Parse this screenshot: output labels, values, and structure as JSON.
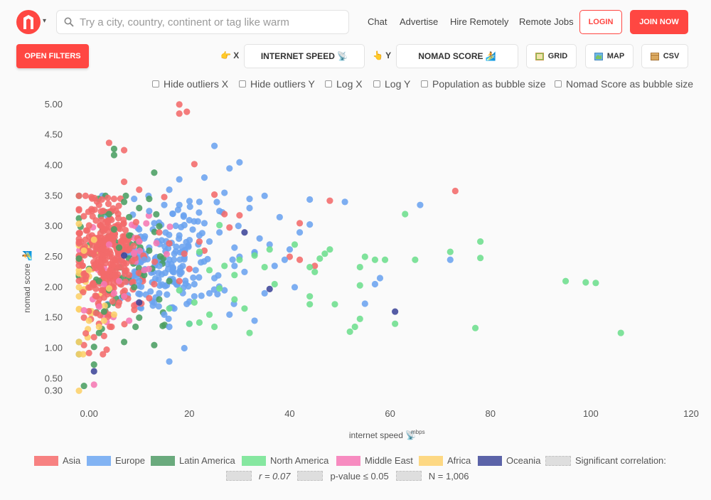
{
  "header": {
    "logo_icon": "nomad-logo-icon",
    "search_placeholder": "Try a city, country, continent or tag like warm",
    "nav": [
      "Chat",
      "Advertise",
      "Hire Remotely",
      "Remote Jobs"
    ],
    "login": "LOGIN",
    "join": "JOIN NOW",
    "brand_color": "#ff4742"
  },
  "toolbar": {
    "filters": "OPEN FILTERS",
    "x_hint_icon": "👉",
    "x_label": "X",
    "x_value": "INTERNET SPEED 📡",
    "y_hint_icon": "👆",
    "y_label": "Y",
    "y_value": "NOMAD SCORE 🏄",
    "grid": "GRID",
    "map": "MAP",
    "csv": "CSV"
  },
  "options": [
    "Hide outliers X",
    "Hide outliers Y",
    "Log X",
    "Log Y",
    "Population as bubble size",
    "Nomad Score as bubble size"
  ],
  "chart_data": {
    "type": "scatter",
    "xlabel": "internet speed 📡",
    "xunit": "mbps",
    "ylabel": "nomad score 🏄",
    "xlim": [
      -3,
      120
    ],
    "ylim": [
      0.2,
      5.15
    ],
    "xticks": [
      0,
      20,
      40,
      60,
      80,
      100,
      120
    ],
    "xtick_labels": [
      "0.00",
      "20",
      "40",
      "60",
      "80",
      "100",
      "120"
    ],
    "yticks": [
      0.3,
      0.5,
      1.0,
      1.5,
      2.0,
      2.5,
      3.0,
      3.5,
      4.0,
      4.5,
      5.0
    ],
    "ytick_labels": [
      "0.30",
      "0.50",
      "1.00",
      "1.50",
      "2.00",
      "2.50",
      "3.00",
      "3.50",
      "4.00",
      "4.50",
      "5.00"
    ],
    "series": [
      {
        "name": "Asia",
        "color": "#f26a6a",
        "points": [
          [
            18,
            5.0
          ],
          [
            19.5,
            4.88
          ],
          [
            18,
            4.85
          ],
          [
            4,
            4.37
          ],
          [
            7,
            4.25
          ],
          [
            21,
            4.02
          ],
          [
            7,
            3.73
          ],
          [
            0.5,
            3.48
          ],
          [
            5,
            3.45
          ],
          [
            2,
            3.35
          ],
          [
            -2,
            3.28
          ],
          [
            48,
            3.42
          ],
          [
            73,
            3.58
          ],
          [
            25,
            3.52
          ],
          [
            10,
            3.6
          ],
          [
            15,
            3.48
          ],
          [
            27,
            3.2
          ],
          [
            30,
            3.18
          ],
          [
            28,
            2.98
          ],
          [
            42,
            3.05
          ],
          [
            22,
            2.75
          ],
          [
            23,
            2.6
          ],
          [
            40,
            2.5
          ],
          [
            42,
            2.45
          ],
          [
            45,
            2.35
          ],
          [
            20,
            2.3
          ],
          [
            18,
            2.1
          ],
          [
            13,
            2.05
          ],
          [
            12,
            1.82
          ],
          [
            9,
            1.7
          ],
          [
            6,
            1.75
          ],
          [
            4,
            1.55
          ],
          [
            2,
            1.4
          ],
          [
            3,
            1.2
          ],
          [
            -1,
            1.05
          ],
          [
            1,
            1.18
          ],
          [
            4.5,
            1.35
          ],
          [
            0,
            0.92
          ],
          [
            -1,
            1.5
          ],
          [
            8,
            2.2
          ],
          [
            11,
            2.48
          ],
          [
            14,
            2.9
          ],
          [
            16,
            2.72
          ],
          [
            19,
            2.55
          ]
        ]
      },
      {
        "name": "Europe",
        "color": "#6ba3ef",
        "points": [
          [
            25,
            4.32
          ],
          [
            30,
            4.05
          ],
          [
            28,
            3.95
          ],
          [
            23,
            3.8
          ],
          [
            18,
            3.77
          ],
          [
            35,
            3.5
          ],
          [
            44,
            3.44
          ],
          [
            51,
            3.4
          ],
          [
            66,
            3.35
          ],
          [
            32,
            3.3
          ],
          [
            26,
            3.25
          ],
          [
            38,
            3.15
          ],
          [
            44,
            3.03
          ],
          [
            42,
            2.9
          ],
          [
            22,
            2.85
          ],
          [
            24,
            2.75
          ],
          [
            29,
            2.65
          ],
          [
            33,
            2.55
          ],
          [
            39,
            2.45
          ],
          [
            37,
            2.35
          ],
          [
            31,
            2.25
          ],
          [
            25,
            2.15
          ],
          [
            41,
            2.0
          ],
          [
            57,
            2.05
          ],
          [
            58,
            2.15
          ],
          [
            55,
            1.73
          ],
          [
            35,
            1.9
          ],
          [
            27,
            1.95
          ],
          [
            21,
            1.85
          ],
          [
            17,
            1.65
          ],
          [
            15,
            1.55
          ],
          [
            20,
            1.4
          ],
          [
            16,
            1.35
          ],
          [
            19,
            1.0
          ],
          [
            16,
            0.78
          ],
          [
            72,
            2.45
          ],
          [
            11,
            2.45
          ],
          [
            12,
            2.65
          ],
          [
            14,
            2.35
          ],
          [
            13,
            3.05
          ],
          [
            10,
            2.95
          ],
          [
            17,
            2.55
          ],
          [
            18,
            2.85
          ],
          [
            15,
            3.35
          ],
          [
            12,
            3.25
          ],
          [
            20,
            3.1
          ],
          [
            9,
            3.45
          ],
          [
            22,
            3.4
          ],
          [
            27,
            3.55
          ],
          [
            16,
            3.6
          ],
          [
            23,
            3.05
          ],
          [
            26,
            2.9
          ],
          [
            30,
            2.5
          ],
          [
            34,
            2.8
          ],
          [
            29,
            2.35
          ],
          [
            24,
            1.9
          ],
          [
            14,
            1.9
          ],
          [
            28,
            1.55
          ],
          [
            33,
            1.45
          ],
          [
            21,
            2.05
          ],
          [
            10,
            2.1
          ],
          [
            13,
            1.75
          ],
          [
            19,
            3.02
          ],
          [
            16,
            2.45
          ],
          [
            22,
            2.55
          ],
          [
            32,
            3.45
          ],
          [
            36,
            2.7
          ],
          [
            40,
            2.62
          ],
          [
            11,
            2.8
          ],
          [
            18,
            3.35
          ]
        ]
      },
      {
        "name": "Latin America",
        "color": "#4a9e62",
        "points": [
          [
            5,
            4.27
          ],
          [
            5,
            4.17
          ],
          [
            13,
            3.88
          ],
          [
            7,
            3.4
          ],
          [
            10,
            3.3
          ],
          [
            4,
            3.2
          ],
          [
            -2,
            2.47
          ],
          [
            0,
            2.3
          ],
          [
            2,
            2.1
          ],
          [
            -2,
            1.1
          ],
          [
            1,
            1.02
          ],
          [
            2,
            1.25
          ],
          [
            3,
            1.6
          ],
          [
            7,
            1.1
          ],
          [
            13,
            1.05
          ],
          [
            1,
            0.73
          ],
          [
            -1,
            0.38
          ],
          [
            14,
            3.0
          ],
          [
            8,
            2.85
          ],
          [
            6,
            2.65
          ],
          [
            11,
            2.2
          ],
          [
            9,
            2.0
          ],
          [
            12,
            2.6
          ],
          [
            5,
            2.95
          ],
          [
            10,
            1.5
          ],
          [
            14,
            1.8
          ],
          [
            16,
            2.1
          ],
          [
            4,
            1.95
          ],
          [
            8,
            3.15
          ],
          [
            12,
            3.45
          ]
        ]
      },
      {
        "name": "North America",
        "color": "#6dde8d",
        "points": [
          [
            63,
            3.2
          ],
          [
            78,
            2.75
          ],
          [
            78,
            2.48
          ],
          [
            72,
            2.58
          ],
          [
            65,
            2.45
          ],
          [
            57,
            2.45
          ],
          [
            59,
            2.45
          ],
          [
            55,
            2.5
          ],
          [
            54,
            2.33
          ],
          [
            48,
            2.62
          ],
          [
            47,
            2.55
          ],
          [
            46,
            2.47
          ],
          [
            44,
            2.33
          ],
          [
            45,
            2.25
          ],
          [
            44,
            1.85
          ],
          [
            44,
            1.72
          ],
          [
            49,
            1.72
          ],
          [
            54,
            2.03
          ],
          [
            54,
            1.48
          ],
          [
            53,
            1.35
          ],
          [
            52,
            1.27
          ],
          [
            61,
            1.4
          ],
          [
            77,
            1.33
          ],
          [
            95,
            2.1
          ],
          [
            99,
            2.08
          ],
          [
            101,
            2.07
          ],
          [
            106,
            1.25
          ],
          [
            36,
            2.62
          ],
          [
            33,
            2.52
          ],
          [
            30,
            2.45
          ],
          [
            27,
            2.35
          ],
          [
            29,
            2.2
          ],
          [
            24,
            2.28
          ],
          [
            26,
            1.98
          ],
          [
            29,
            1.8
          ],
          [
            31,
            1.65
          ],
          [
            24,
            1.55
          ],
          [
            25,
            1.35
          ],
          [
            22,
            1.42
          ],
          [
            32,
            1.25
          ],
          [
            37,
            2.05
          ],
          [
            35,
            2.33
          ],
          [
            41,
            2.7
          ],
          [
            26,
            3.02
          ],
          [
            16,
            1.65
          ],
          [
            20,
            1.4
          ],
          [
            21,
            1.75
          ],
          [
            18,
            1.95
          ],
          [
            22,
            2.58
          ]
        ]
      },
      {
        "name": "Middle East",
        "color": "#f577b3",
        "points": [
          [
            1,
            0.4
          ],
          [
            2,
            1.68
          ],
          [
            5,
            1.9
          ],
          [
            8,
            1.45
          ],
          [
            6,
            2.1
          ],
          [
            9,
            2.55
          ],
          [
            11,
            2.28
          ],
          [
            4,
            2.7
          ],
          [
            3,
            2.05
          ],
          [
            7,
            1.85
          ],
          [
            10,
            2.75
          ],
          [
            -1,
            1.62
          ]
        ]
      },
      {
        "name": "Africa",
        "color": "#fcd069",
        "points": [
          [
            -2,
            2.0
          ],
          [
            -2,
            1.85
          ],
          [
            -2,
            0.3
          ],
          [
            -2,
            1.1
          ],
          [
            0,
            1.45
          ],
          [
            3,
            1.45
          ],
          [
            5,
            1.55
          ],
          [
            0,
            2.28
          ],
          [
            2,
            1.35
          ],
          [
            4,
            1.98
          ],
          [
            -1,
            2.6
          ],
          [
            1,
            2.78
          ]
        ]
      },
      {
        "name": "Oceania",
        "color": "#3d4699",
        "points": [
          [
            61,
            1.6
          ],
          [
            36,
            1.97
          ],
          [
            31,
            2.9
          ],
          [
            10,
            1.75
          ],
          [
            1,
            0.62
          ],
          [
            7,
            2.52
          ]
        ]
      }
    ],
    "dense_cluster": {
      "series": "Asia",
      "center": [
        3.5,
        2.5
      ],
      "count": 300,
      "spread": [
        3.2,
        0.48
      ]
    },
    "dense_clusters_extra": [
      {
        "series": "Europe",
        "center": [
          15,
          2.4
        ],
        "count": 170,
        "spread": [
          6,
          0.45
        ]
      },
      {
        "series": "Latin America",
        "center": [
          6,
          2.55
        ],
        "count": 60,
        "spread": [
          5,
          0.5
        ]
      },
      {
        "series": "Middle East",
        "center": [
          7,
          2.45
        ],
        "count": 30,
        "spread": [
          5,
          0.45
        ]
      },
      {
        "series": "Africa",
        "center": [
          0,
          2.0
        ],
        "count": 25,
        "spread": [
          2,
          0.55
        ]
      }
    ]
  },
  "legend_extra": "Significant correlation:",
  "stats": {
    "r": "r = 0.07",
    "p": "p-value ≤ 0.05",
    "n": "N = 1,006"
  }
}
